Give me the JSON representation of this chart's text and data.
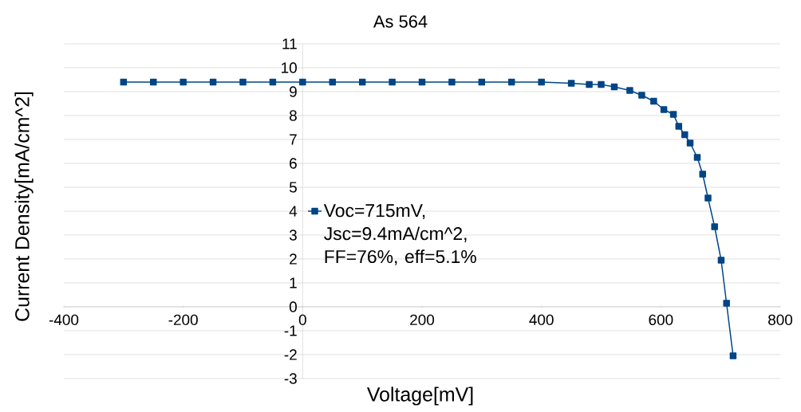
{
  "chart_data": {
    "type": "line",
    "title": "As 564",
    "xlabel": "Voltage[mV]",
    "ylabel": "Current Density[mA/cm^2]",
    "x": [
      -300,
      -250,
      -200,
      -150,
      -100,
      -50,
      0,
      50,
      100,
      150,
      200,
      250,
      300,
      350,
      400,
      450,
      480,
      500,
      522,
      548,
      568,
      588,
      605,
      621,
      630,
      640,
      649,
      661,
      670,
      679,
      690,
      701,
      710,
      721
    ],
    "series": [
      {
        "name": "Voc=715mV, Jsc=9.4mA/cm^2, FF=76%, eff=5.1%",
        "color": "#004586",
        "values": [
          9.4,
          9.4,
          9.4,
          9.4,
          9.4,
          9.4,
          9.4,
          9.4,
          9.4,
          9.4,
          9.4,
          9.4,
          9.4,
          9.4,
          9.4,
          9.35,
          9.3,
          9.3,
          9.2,
          9.05,
          8.85,
          8.6,
          8.25,
          8.05,
          7.55,
          7.2,
          6.85,
          6.25,
          5.55,
          4.55,
          3.35,
          1.95,
          0.15,
          -2.05
        ]
      }
    ],
    "xlim": [
      -400,
      800
    ],
    "ylim": [
      -3,
      11
    ],
    "xticks": [
      -400,
      -200,
      0,
      200,
      400,
      600,
      800
    ],
    "yticks": [
      -3,
      -2,
      -1,
      0,
      1,
      2,
      3,
      4,
      5,
      6,
      7,
      8,
      9,
      10,
      11
    ],
    "grid": "y",
    "legend": "center",
    "marker": "square",
    "line_style": "solid"
  }
}
